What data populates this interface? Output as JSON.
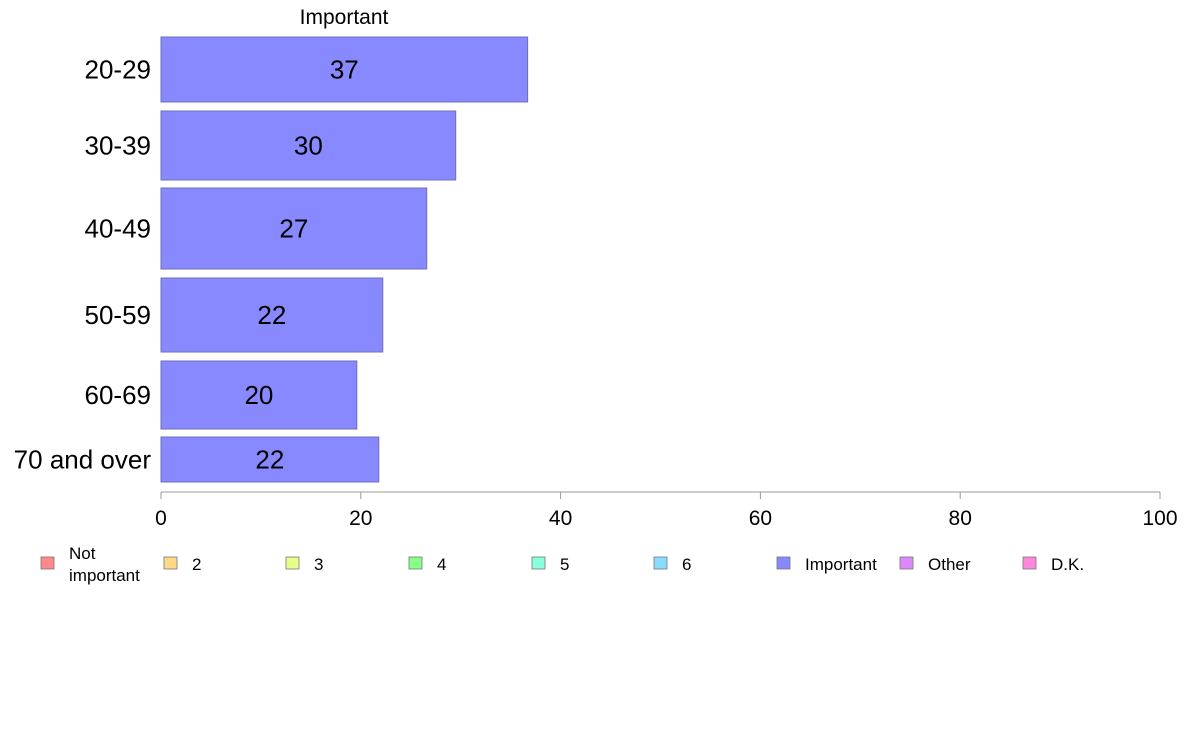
{
  "chart_data": {
    "type": "bar",
    "orientation": "horizontal",
    "title": "Important",
    "xlabel": "",
    "ylabel": "",
    "xlim": [
      0,
      100
    ],
    "x_ticks": [
      0,
      20,
      40,
      60,
      80,
      100
    ],
    "categories": [
      "20-29",
      "30-39",
      "40-49",
      "50-59",
      "60-69",
      "70 and over"
    ],
    "series": [
      {
        "name": "Important",
        "values": [
          36.7,
          29.5,
          26.6,
          22.2,
          19.6,
          21.8
        ],
        "labels": [
          "37",
          "30",
          "27",
          "22",
          "20",
          "22"
        ],
        "color": "#8888ff"
      }
    ],
    "grid": false,
    "legend_position": "bottom",
    "legend": [
      {
        "label": "Not important",
        "color": "#ff8888"
      },
      {
        "label": "2",
        "color": "#ffd988"
      },
      {
        "label": "3",
        "color": "#e6ff88"
      },
      {
        "label": "4",
        "color": "#88ff88"
      },
      {
        "label": "5",
        "color": "#88ffdd"
      },
      {
        "label": "6",
        "color": "#88ddff"
      },
      {
        "label": "Important",
        "color": "#8888ff"
      },
      {
        "label": "Other",
        "color": "#dd88ff"
      },
      {
        "label": "D.K.",
        "color": "#ff88dd"
      }
    ],
    "bar_edge_color": "#6f6fb8",
    "axis_color": "#999999"
  }
}
